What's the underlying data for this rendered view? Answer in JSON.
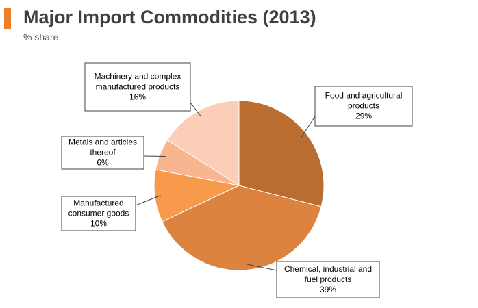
{
  "header": {
    "title": "Major Import Commodities (2013)",
    "subtitle": "% share",
    "accent_color": "#f07f2c"
  },
  "chart_data": {
    "type": "pie",
    "title": "Major Import Commodities (2013)",
    "subtitle": "% share",
    "unit": "%",
    "slices": [
      {
        "label": [
          "Food and agricultural",
          "products"
        ],
        "value": 29,
        "value_label": "29%",
        "color": "#b96d30"
      },
      {
        "label": [
          "Chemical, industrial and",
          "fuel products"
        ],
        "value": 39,
        "value_label": "39%",
        "color": "#dc843f"
      },
      {
        "label": [
          "Manufactured",
          "consumer goods"
        ],
        "value": 10,
        "value_label": "10%",
        "color": "#f79a4c"
      },
      {
        "label": [
          "Metals and articles",
          "thereof"
        ],
        "value": 6,
        "value_label": "6%",
        "color": "#f8b58f"
      },
      {
        "label": [
          "Machinery and complex",
          "manufactured products"
        ],
        "value": 16,
        "value_label": "16%",
        "color": "#fccdb7"
      }
    ]
  }
}
